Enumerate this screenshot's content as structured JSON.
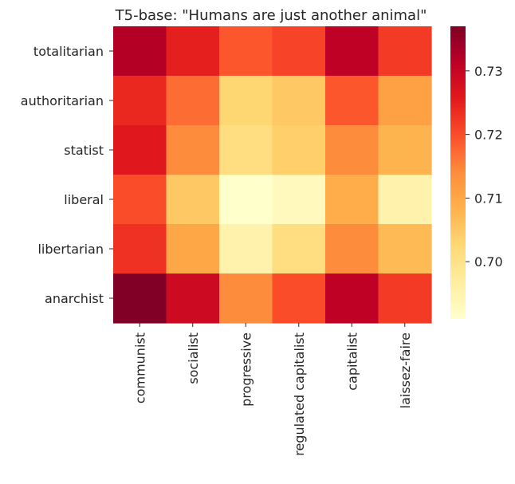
{
  "chart_data": {
    "type": "heatmap",
    "title": "T5-base: \"Humans are just another animal\"",
    "x_categories": [
      "communist",
      "socialist",
      "progressive",
      "regulated capitalist",
      "capitalist",
      "laissez-faire"
    ],
    "y_categories": [
      "totalitarian",
      "authoritarian",
      "statist",
      "liberal",
      "libertarian",
      "anarchist"
    ],
    "values": [
      [
        0.732,
        0.725,
        0.719,
        0.721,
        0.731,
        0.722
      ],
      [
        0.724,
        0.717,
        0.703,
        0.705,
        0.719,
        0.711
      ],
      [
        0.726,
        0.714,
        0.701,
        0.704,
        0.714,
        0.708
      ],
      [
        0.72,
        0.705,
        0.691,
        0.693,
        0.709,
        0.695
      ],
      [
        0.723,
        0.71,
        0.695,
        0.701,
        0.714,
        0.707
      ],
      [
        0.737,
        0.729,
        0.714,
        0.72,
        0.731,
        0.722
      ]
    ],
    "colorbar": {
      "min": 0.691,
      "max": 0.737,
      "ticks": [
        0.7,
        0.71,
        0.72,
        0.73
      ],
      "colormap": "YlOrRd"
    },
    "xlabel": "",
    "ylabel": ""
  }
}
